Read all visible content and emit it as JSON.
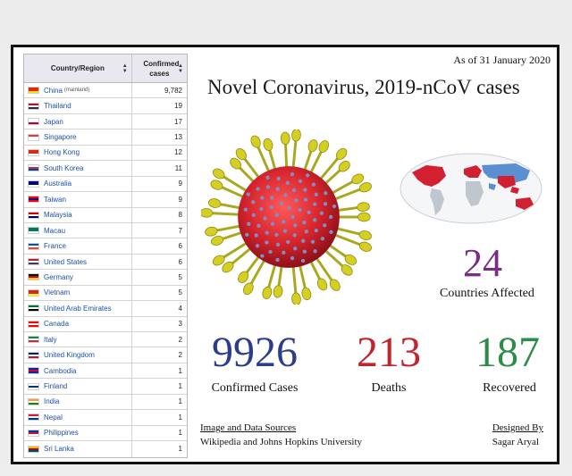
{
  "table": {
    "header_country": "Country/Region",
    "header_cases": "Confirmed cases",
    "sort_icon": "sort-icon",
    "rows": [
      {
        "name": "China",
        "note": "(mainland)",
        "cases": "9,782",
        "flag": [
          "#de2910",
          "#de2910",
          "#ffde00"
        ]
      },
      {
        "name": "Thailand",
        "note": "",
        "cases": "19",
        "flag": [
          "#a51931",
          "#f4f5f8",
          "#2d2a4a"
        ]
      },
      {
        "name": "Japan",
        "note": "",
        "cases": "17",
        "flag": [
          "#ffffff",
          "#ffffff",
          "#bc002d"
        ]
      },
      {
        "name": "Singapore",
        "note": "",
        "cases": "13",
        "flag": [
          "#ef3340",
          "#ffffff",
          "#ffffff"
        ]
      },
      {
        "name": "Hong Kong",
        "note": "",
        "cases": "12",
        "flag": [
          "#de2910",
          "#de2910",
          "#ffffff"
        ]
      },
      {
        "name": "South Korea",
        "note": "",
        "cases": "11",
        "flag": [
          "#ffffff",
          "#cd2e3a",
          "#0047a0"
        ]
      },
      {
        "name": "Australia",
        "note": "",
        "cases": "9",
        "flag": [
          "#00008b",
          "#00008b",
          "#ffffff"
        ]
      },
      {
        "name": "Taiwan",
        "note": "",
        "cases": "9",
        "flag": [
          "#fe0000",
          "#000095",
          "#fe0000"
        ]
      },
      {
        "name": "Malaysia",
        "note": "",
        "cases": "8",
        "flag": [
          "#cc0001",
          "#ffffff",
          "#010066"
        ]
      },
      {
        "name": "Macau",
        "note": "",
        "cases": "7",
        "flag": [
          "#00785e",
          "#00785e",
          "#ffffff"
        ]
      },
      {
        "name": "France",
        "note": "",
        "cases": "6",
        "flag": [
          "#0055a4",
          "#ffffff",
          "#ef4135"
        ]
      },
      {
        "name": "United States",
        "note": "",
        "cases": "6",
        "flag": [
          "#b22234",
          "#ffffff",
          "#3c3b6e"
        ]
      },
      {
        "name": "Germany",
        "note": "",
        "cases": "5",
        "flag": [
          "#000000",
          "#dd0000",
          "#ffce00"
        ]
      },
      {
        "name": "Vietnam",
        "note": "",
        "cases": "5",
        "flag": [
          "#da251d",
          "#da251d",
          "#ffff00"
        ]
      },
      {
        "name": "United Arab Emirates",
        "note": "",
        "cases": "4",
        "flag": [
          "#00732f",
          "#ffffff",
          "#000000"
        ]
      },
      {
        "name": "Canada",
        "note": "",
        "cases": "3",
        "flag": [
          "#ff0000",
          "#ffffff",
          "#ff0000"
        ]
      },
      {
        "name": "Italy",
        "note": "",
        "cases": "2",
        "flag": [
          "#009246",
          "#ffffff",
          "#ce2b37"
        ]
      },
      {
        "name": "United Kingdom",
        "note": "",
        "cases": "2",
        "flag": [
          "#012169",
          "#ffffff",
          "#c8102e"
        ]
      },
      {
        "name": "Cambodia",
        "note": "",
        "cases": "1",
        "flag": [
          "#032ea1",
          "#e00025",
          "#032ea1"
        ]
      },
      {
        "name": "Finland",
        "note": "",
        "cases": "1",
        "flag": [
          "#ffffff",
          "#003580",
          "#ffffff"
        ]
      },
      {
        "name": "India",
        "note": "",
        "cases": "1",
        "flag": [
          "#ff9933",
          "#ffffff",
          "#138808"
        ]
      },
      {
        "name": "Nepal",
        "note": "",
        "cases": "1",
        "flag": [
          "#dc143c",
          "#ffffff",
          "#003893"
        ]
      },
      {
        "name": "Philippines",
        "note": "",
        "cases": "1",
        "flag": [
          "#0038a8",
          "#ce1126",
          "#ffffff"
        ]
      },
      {
        "name": "Sri Lanka",
        "note": "",
        "cases": "1",
        "flag": [
          "#ffb700",
          "#8d153a",
          "#00534e"
        ]
      }
    ]
  },
  "date": "As of 31 January 2020",
  "title": "Novel Coronavirus, 2019-nCoV cases",
  "stats": {
    "countries": {
      "value": "24",
      "label": "Countries Affected",
      "color": "#7a2c86"
    },
    "confirmed": {
      "value": "9926",
      "label": "Confirmed Cases",
      "color": "#2b3d8f"
    },
    "deaths": {
      "value": "213",
      "label": "Deaths",
      "color": "#c4232d"
    },
    "recovered": {
      "value": "187",
      "label": "Recovered",
      "color": "#2e8b4a"
    }
  },
  "footer": {
    "sources_title": "Image and Data Sources",
    "sources_text": "Wikipedia and Johns Hopkins University",
    "designed_title": "Designed By",
    "designed_name": "Sagar Aryal"
  }
}
